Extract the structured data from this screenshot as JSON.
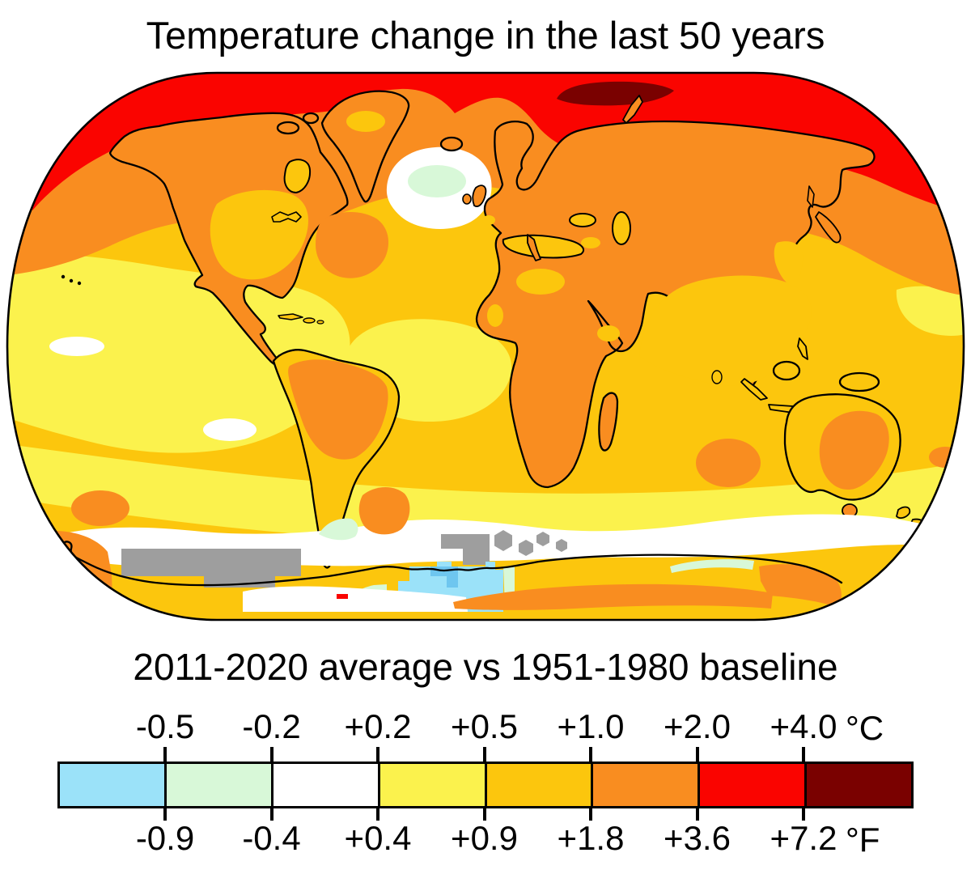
{
  "title": "Temperature change in the last 50 years",
  "subtitle": "2011-2020 average vs 1951-1980 baseline",
  "legend": {
    "celsius_labels": [
      "-0.5",
      "-0.2",
      "+0.2",
      "+0.5",
      "+1.0",
      "+2.0",
      "+4.0"
    ],
    "celsius_unit": "°C",
    "fahrenheit_labels": [
      "-0.9",
      "-0.4",
      "+0.4",
      "+0.9",
      "+1.8",
      "+3.6",
      "+7.2"
    ],
    "fahrenheit_unit": "°F",
    "swatch_colors": [
      "#9be2f9",
      "#d8f8d8",
      "#ffffff",
      "#fbf24d",
      "#fcc60d",
      "#f98d20",
      "#fa0400",
      "#7a0100"
    ]
  },
  "map": {
    "palette": {
      "blue": "#9be2f9",
      "blue2": "#6ec6ef",
      "green": "#d8f8d8",
      "white": "#ffffff",
      "yellow": "#fbf24d",
      "gold": "#fcc60d",
      "orange": "#f98d20",
      "red": "#fa0400",
      "darkred": "#7a0100",
      "gray": "#9e9e9e",
      "coast": "#000000"
    }
  }
}
